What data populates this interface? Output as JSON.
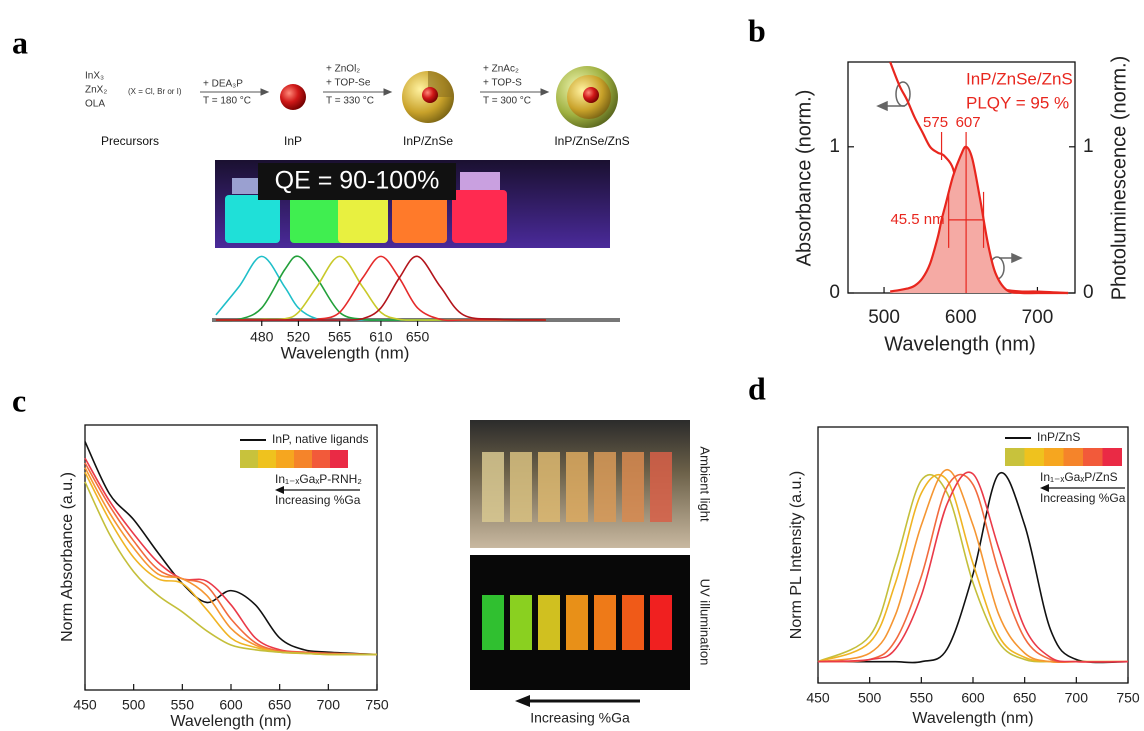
{
  "panel_labels": [
    "a",
    "b",
    "c",
    "d"
  ],
  "schematic": {
    "precursors": [
      "InX₃",
      "ZnX₂",
      "OLA"
    ],
    "halide_note": "(X = Cl, Br or I)",
    "steps": [
      [
        "+ DEA₃P",
        "T = 180 °C"
      ],
      [
        "+ ZnOl₂",
        "+ TOP-Se",
        "T = 330 °C"
      ],
      [
        "+ ZnAc₂",
        "+ TOP-S",
        "T = 300 °C"
      ]
    ],
    "stages": [
      "Precursors",
      "InP",
      "InP/ZnSe",
      "InP/ZnSe/ZnS"
    ],
    "photo_label": "QE = 90-100%"
  },
  "photos_c": {
    "top": "Ambient light",
    "bottom": "UV illumination",
    "arrow": "Increasing %Ga"
  },
  "chart_data": [
    {
      "type": "line",
      "frame": false,
      "xlabel": "Wavelength (nm)",
      "x": [
        430,
        455,
        480,
        505,
        520,
        540,
        565,
        590,
        610,
        630,
        650,
        675,
        700,
        740,
        790
      ],
      "xlim": [
        429,
        849
      ],
      "ylim": [
        0,
        1.1
      ],
      "xticks": [
        480,
        520,
        565,
        610,
        650
      ],
      "series": [
        {
          "color": "#1fbfc9",
          "values": [
            0.08,
            0.52,
            1,
            0.52,
            0.19,
            0.02,
            0,
            0,
            0,
            0,
            0,
            0,
            0,
            0,
            0
          ]
        },
        {
          "color": "#22a03a",
          "values": [
            0,
            0.01,
            0.19,
            0.79,
            1,
            0.66,
            0.12,
            0.01,
            0,
            0,
            0,
            0,
            0,
            0,
            0
          ]
        },
        {
          "color": "#c9c92a",
          "values": [
            0,
            0,
            0.01,
            0.02,
            0.12,
            0.52,
            1,
            0.52,
            0.12,
            0.01,
            0,
            0,
            0,
            0,
            0
          ]
        },
        {
          "color": "#e52b2b",
          "values": [
            0,
            0,
            0,
            0,
            0,
            0.01,
            0.12,
            0.66,
            1,
            0.66,
            0.19,
            0.01,
            0,
            0,
            0
          ]
        },
        {
          "color": "#b3141b",
          "values": [
            0,
            0,
            0,
            0,
            0,
            0,
            0,
            0.02,
            0.19,
            0.66,
            1,
            0.52,
            0.08,
            0.01,
            0
          ]
        }
      ]
    },
    {
      "type": "line",
      "frame": true,
      "xlabel": "Wavelength (nm)",
      "ylabel": "Absorbance (norm.)",
      "y2label": "Photoluminescence (norm.)",
      "x": [
        508,
        520,
        530,
        540,
        550,
        560,
        570,
        575,
        580,
        590,
        600,
        607,
        615,
        625,
        635,
        645,
        660,
        680,
        700,
        740
      ],
      "xlim": [
        453,
        749
      ],
      "ylim": [
        0,
        1.58
      ],
      "y2lim": [
        0,
        1.58
      ],
      "xticks": [
        500,
        600,
        700
      ],
      "yticks": [
        0,
        1
      ],
      "y2ticks": [
        0,
        1
      ],
      "series": [
        {
          "color": "#e8261e",
          "values": [
            1.58,
            1.42,
            1.32,
            1.2,
            1.1,
            1.0,
            0.96,
            0.95,
            0.93,
            0.85,
            0.62,
            0.48,
            0.32,
            0.16,
            0.08,
            0.04,
            0.02,
            0.01,
            0.01,
            0
          ]
        },
        {
          "color": "#e8261e",
          "axis": "y2",
          "area": true,
          "fill_color": "#f5aaa4",
          "values": [
            0.01,
            0.02,
            0.03,
            0.05,
            0.1,
            0.2,
            0.38,
            0.5,
            0.6,
            0.8,
            0.94,
            1,
            0.92,
            0.65,
            0.35,
            0.14,
            0.02,
            0,
            0,
            0
          ]
        }
      ],
      "annotations": {
        "sample": "InP/ZnSe/ZnS",
        "plqy": "PLQY = 95 %",
        "abs_peak": 575,
        "pl_peak": 607,
        "fwhm": {
          "value": 45.5,
          "label": "45.5 nm"
        }
      }
    },
    {
      "type": "line",
      "frame": true,
      "xlabel": "Wavelength (nm)",
      "ylabel": "Norm Absorbance (a.u.)",
      "x": [
        450,
        475,
        500,
        525,
        550,
        575,
        600,
        625,
        650,
        675,
        700,
        750
      ],
      "xlim": [
        450,
        750
      ],
      "ylim": [
        0,
        1.12
      ],
      "xticks": [
        450,
        500,
        550,
        600,
        650,
        700,
        750
      ],
      "series": [
        {
          "name": "InP, native ligands",
          "color": "#111111",
          "values": [
            1.05,
            0.83,
            0.72,
            0.58,
            0.45,
            0.37,
            0.42,
            0.36,
            0.22,
            0.17,
            0.16,
            0.15
          ]
        },
        {
          "color": "#ea3a48",
          "values": [
            0.98,
            0.8,
            0.66,
            0.54,
            0.47,
            0.46,
            0.36,
            0.22,
            0.17,
            0.16,
            0.155,
            0.15
          ]
        },
        {
          "color": "#f26a3e",
          "values": [
            0.96,
            0.78,
            0.63,
            0.51,
            0.47,
            0.44,
            0.3,
            0.2,
            0.165,
            0.16,
            0.155,
            0.15
          ]
        },
        {
          "color": "#f59632",
          "values": [
            0.94,
            0.75,
            0.6,
            0.49,
            0.47,
            0.4,
            0.26,
            0.19,
            0.16,
            0.155,
            0.15,
            0.15
          ]
        },
        {
          "color": "#f0b423",
          "values": [
            0.92,
            0.72,
            0.56,
            0.47,
            0.45,
            0.34,
            0.22,
            0.18,
            0.16,
            0.155,
            0.15,
            0.15
          ]
        },
        {
          "color": "#c4bf3a",
          "values": [
            0.88,
            0.66,
            0.5,
            0.4,
            0.33,
            0.25,
            0.19,
            0.17,
            0.16,
            0.155,
            0.15,
            0.15
          ]
        }
      ],
      "legend_colors": [
        "#c8c23c",
        "#efc21e",
        "#f6a61f",
        "#f5842a",
        "#f25a3a",
        "#ea2a45"
      ],
      "legend_gradient_label": "In₁₋ₓGaₓP-RNH₂",
      "legend_note": "Increasing %Ga"
    },
    {
      "type": "line",
      "frame": true,
      "xlabel": "Wavelength (nm)",
      "ylabel": "Norm PL Intensity (a.u.)",
      "x": [
        450,
        500,
        525,
        550,
        575,
        600,
        625,
        650,
        675,
        700,
        750
      ],
      "xlim": [
        450,
        750
      ],
      "ylim": [
        0,
        1.2
      ],
      "xticks": [
        450,
        500,
        550,
        600,
        650,
        700,
        750
      ],
      "series": [
        {
          "name": "InP/ZnS",
          "color": "#111111",
          "values": [
            0.1,
            0.1,
            0.1,
            0.1,
            0.16,
            0.51,
            0.98,
            0.74,
            0.25,
            0.11,
            0.1
          ]
        },
        {
          "color": "#c4bf3a",
          "values": [
            0.1,
            0.22,
            0.56,
            0.95,
            0.89,
            0.47,
            0.19,
            0.11,
            0.1,
            0.1,
            0.1
          ]
        },
        {
          "color": "#f0b423",
          "values": [
            0.1,
            0.19,
            0.47,
            0.89,
            0.95,
            0.56,
            0.22,
            0.12,
            0.1,
            0.1,
            0.1
          ]
        },
        {
          "color": "#f59632",
          "values": [
            0.1,
            0.14,
            0.32,
            0.74,
            1.0,
            0.74,
            0.32,
            0.14,
            0.1,
            0.1,
            0.1
          ]
        },
        {
          "color": "#f26a3e",
          "values": [
            0.1,
            0.11,
            0.2,
            0.5,
            0.92,
            0.93,
            0.52,
            0.21,
            0.11,
            0.1,
            0.1
          ]
        },
        {
          "color": "#ea3a48",
          "values": [
            0.1,
            0.11,
            0.16,
            0.41,
            0.84,
            0.98,
            0.63,
            0.26,
            0.12,
            0.1,
            0.1
          ]
        }
      ],
      "legend_colors": [
        "#c8c23c",
        "#efc21e",
        "#f6a61f",
        "#f5842a",
        "#f25a3a",
        "#ea2a45"
      ],
      "legend_gradient_label": "In₁₋ₓGaₓP/ZnS",
      "legend_note": "Increasing %Ga"
    }
  ]
}
